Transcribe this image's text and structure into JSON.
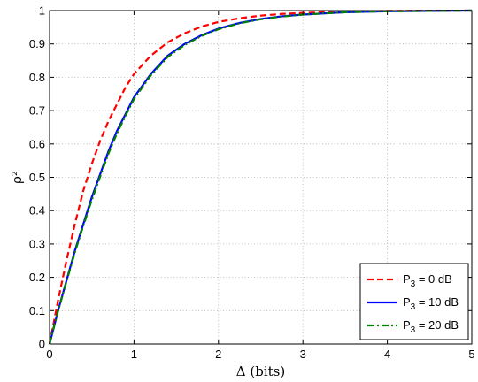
{
  "chart_data": {
    "type": "line",
    "xlabel": "Δ (bits)",
    "ylabel": "ρ²",
    "xlim": [
      0,
      5
    ],
    "ylim": [
      0,
      1
    ],
    "xticks": [
      "0",
      "1",
      "2",
      "3",
      "4",
      "5"
    ],
    "yticks": [
      "0",
      "0.1",
      "0.2",
      "0.3",
      "0.4",
      "0.5",
      "0.6",
      "0.7",
      "0.8",
      "0.9",
      "1"
    ],
    "grid": true,
    "legend_position": "bottom-right",
    "x": [
      0,
      0.1,
      0.2,
      0.3,
      0.4,
      0.5,
      0.6,
      0.7,
      0.8,
      0.9,
      1.0,
      1.2,
      1.4,
      1.6,
      1.8,
      2.0,
      2.25,
      2.5,
      2.75,
      3.0,
      3.5,
      4.0,
      4.5,
      5.0
    ],
    "series": [
      {
        "name_main": "P",
        "name_sub": "3",
        "name_rest": " = 0 dB",
        "color": "#ff0000",
        "style": "dashed",
        "values": [
          0.0,
          0.13,
          0.25,
          0.36,
          0.46,
          0.54,
          0.61,
          0.67,
          0.72,
          0.77,
          0.81,
          0.865,
          0.905,
          0.932,
          0.952,
          0.966,
          0.977,
          0.985,
          0.99,
          0.993,
          0.997,
          0.999,
          0.9995,
          1.0
        ]
      },
      {
        "name_main": "P",
        "name_sub": "3",
        "name_rest": " = 10 dB",
        "color": "#0000ff",
        "style": "solid",
        "values": [
          0.0,
          0.1,
          0.19,
          0.28,
          0.36,
          0.44,
          0.51,
          0.58,
          0.64,
          0.69,
          0.74,
          0.81,
          0.865,
          0.9,
          0.926,
          0.946,
          0.963,
          0.975,
          0.983,
          0.988,
          0.995,
          0.998,
          0.999,
          1.0
        ]
      },
      {
        "name_main": "P",
        "name_sub": "3",
        "name_rest": " = 20 dB",
        "color": "#008000",
        "style": "dashdot",
        "values": [
          0.0,
          0.098,
          0.187,
          0.275,
          0.355,
          0.432,
          0.503,
          0.573,
          0.633,
          0.685,
          0.735,
          0.806,
          0.861,
          0.897,
          0.924,
          0.944,
          0.962,
          0.974,
          0.982,
          0.988,
          0.995,
          0.998,
          0.999,
          1.0
        ]
      }
    ]
  }
}
